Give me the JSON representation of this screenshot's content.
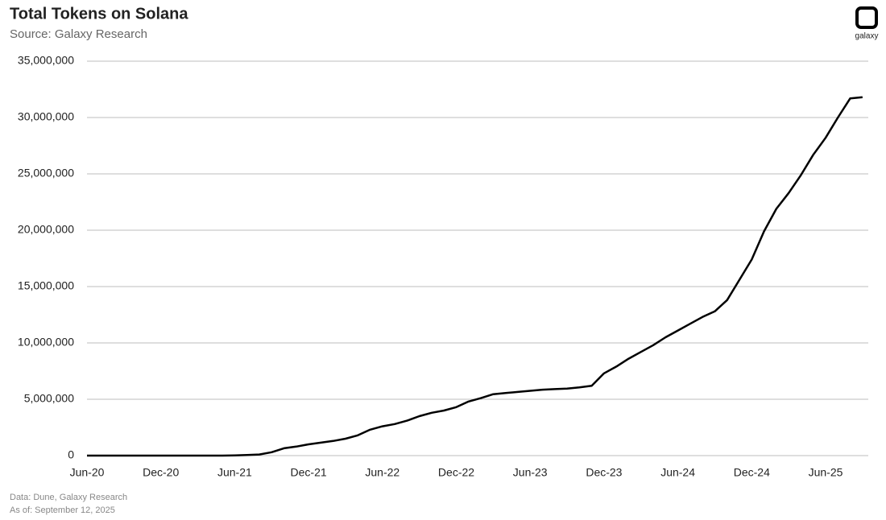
{
  "chart_data": {
    "type": "line",
    "title": "Total Tokens on Solana",
    "subtitle": "Source: Galaxy Research",
    "logo_text": "galaxy",
    "footnotes": [
      "Data: Dune, Galaxy Research",
      "As of: September 12, 2025"
    ],
    "categories": [
      "Jun-20",
      null,
      null,
      null,
      null,
      null,
      "Dec-20",
      null,
      null,
      null,
      null,
      null,
      "Jun-21",
      null,
      null,
      null,
      null,
      null,
      "Dec-21",
      null,
      null,
      null,
      null,
      null,
      "Jun-22",
      null,
      null,
      null,
      null,
      null,
      "Dec-22",
      null,
      null,
      null,
      null,
      null,
      "Jun-23",
      null,
      null,
      null,
      null,
      null,
      "Dec-23",
      null,
      null,
      null,
      null,
      null,
      "Jun-24",
      null,
      null,
      null,
      null,
      null,
      "Dec-24",
      null,
      null,
      null,
      null,
      null,
      "Jun-25",
      null,
      null,
      null
    ],
    "series": [
      {
        "name": "Total Tokens",
        "color": "#000000",
        "values": [
          0,
          0,
          0,
          0,
          0,
          0,
          0,
          0,
          0,
          0,
          0,
          0,
          20000,
          50000,
          100000,
          300000,
          650000,
          800000,
          1000000,
          1150000,
          1300000,
          1500000,
          1800000,
          2300000,
          2600000,
          2800000,
          3100000,
          3500000,
          3800000,
          4000000,
          4300000,
          4800000,
          5100000,
          5450000,
          5550000,
          5650000,
          5750000,
          5850000,
          5900000,
          5950000,
          6050000,
          6200000,
          7300000,
          7900000,
          8600000,
          9200000,
          9800000,
          10500000,
          11100000,
          11700000,
          12300000,
          12800000,
          13800000,
          15600000,
          17400000,
          19900000,
          21900000,
          23300000,
          24900000,
          26700000,
          28200000,
          30000000,
          31700000,
          31800000
        ]
      }
    ],
    "ylim": [
      0,
      35000000
    ],
    "yticks": [
      0,
      {
        "value": 5000000,
        "label": "5,000,000"
      },
      {
        "value": 10000000,
        "label": "10,000,000"
      },
      {
        "value": 15000000,
        "label": "15,000,000"
      },
      {
        "value": 20000000,
        "label": "20,000,000"
      },
      {
        "value": 25000000,
        "label": "25,000,000"
      },
      {
        "value": 30000000,
        "label": "30,000,000"
      },
      {
        "value": 35000000,
        "label": "35,000,000"
      }
    ],
    "grid": true
  }
}
